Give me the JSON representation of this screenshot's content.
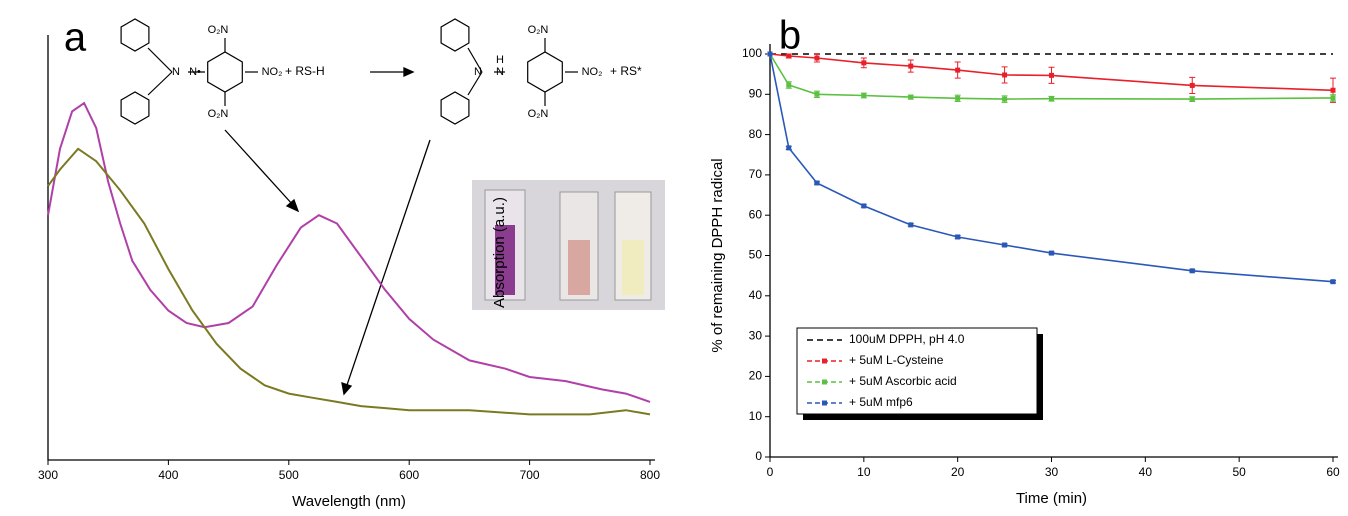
{
  "chart_data": [
    {
      "type": "line",
      "panel_label": "a",
      "xlabel": "Wavelength (nm)",
      "ylabel": "Absorption (a.u.)",
      "xlim": [
        300,
        800
      ],
      "xticks": [
        300,
        400,
        500,
        600,
        700,
        800
      ],
      "ylim": [
        0,
        1
      ],
      "reactant_labels": [
        "N",
        "N•",
        "O₂N",
        "NO₂",
        "O₂N"
      ],
      "reagent": "+ RS-H",
      "product_labels": [
        "N",
        "N",
        "H",
        "O₂N",
        "NO₂",
        "O₂N"
      ],
      "byproduct": "+ RS*",
      "series": [
        {
          "color": "#b040a8",
          "x": [
            300,
            310,
            320,
            330,
            340,
            350,
            360,
            370,
            385,
            400,
            415,
            430,
            450,
            470,
            490,
            510,
            525,
            540,
            560,
            580,
            600,
            620,
            650,
            680,
            700,
            730,
            760,
            780,
            800
          ],
          "values": [
            0.59,
            0.75,
            0.84,
            0.86,
            0.8,
            0.67,
            0.57,
            0.48,
            0.41,
            0.36,
            0.33,
            0.32,
            0.33,
            0.37,
            0.47,
            0.56,
            0.59,
            0.57,
            0.49,
            0.41,
            0.34,
            0.29,
            0.24,
            0.22,
            0.2,
            0.19,
            0.17,
            0.16,
            0.14
          ]
        },
        {
          "color": "#7a7a22",
          "x": [
            300,
            310,
            325,
            340,
            360,
            380,
            400,
            420,
            440,
            460,
            480,
            500,
            520,
            540,
            560,
            600,
            650,
            700,
            750,
            780,
            800
          ],
          "values": [
            0.66,
            0.7,
            0.75,
            0.72,
            0.65,
            0.57,
            0.46,
            0.36,
            0.28,
            0.22,
            0.18,
            0.16,
            0.15,
            0.14,
            0.13,
            0.12,
            0.12,
            0.11,
            0.11,
            0.12,
            0.11
          ]
        }
      ]
    },
    {
      "type": "line",
      "panel_label": "b",
      "xlabel": "Time (min)",
      "ylabel": "% of remaining DPPH radical",
      "xlim": [
        0,
        60
      ],
      "xticks": [
        0,
        10,
        20,
        30,
        40,
        50,
        60
      ],
      "ylim": [
        0,
        100
      ],
      "yticks": [
        0,
        10,
        20,
        30,
        40,
        50,
        60,
        70,
        80,
        90,
        100
      ],
      "legend": "lower left",
      "series": [
        {
          "name": "100uM DPPH, pH 4.0",
          "color": "#000000",
          "line_style": "dashed",
          "x": [
            0,
            60
          ],
          "values": [
            100,
            100
          ]
        },
        {
          "name": "+ 5uM L-Cysteine",
          "color": "#e8202a",
          "x": [
            0,
            2,
            5,
            10,
            15,
            20,
            25,
            30,
            45,
            60
          ],
          "values": [
            100,
            99.5,
            99,
            97.8,
            97,
            96,
            94.8,
            94.7,
            92.2,
            91
          ],
          "errors": [
            0,
            0.5,
            1,
            1.2,
            1.5,
            2,
            2,
            2,
            2,
            3
          ]
        },
        {
          "name": "+ 5uM Ascorbic acid",
          "color": "#5cc040",
          "x": [
            0,
            2,
            5,
            10,
            15,
            20,
            25,
            30,
            45,
            60
          ],
          "values": [
            100,
            92.3,
            90,
            89.7,
            89.3,
            89,
            88.8,
            88.9,
            88.8,
            89.1
          ],
          "errors": [
            0,
            0.8,
            0.8,
            0.6,
            0.5,
            0.8,
            0.8,
            0.6,
            0.6,
            0.8
          ]
        },
        {
          "name": "+ 5uM mfp6",
          "color": "#2b58b8",
          "x": [
            0,
            2,
            5,
            10,
            15,
            20,
            25,
            30,
            45,
            60
          ],
          "values": [
            100,
            76.7,
            68,
            62.3,
            57.6,
            54.6,
            52.6,
            50.6,
            46.2,
            43.5
          ],
          "errors": [
            0,
            0.4,
            0.3,
            0.3,
            0.3,
            0.4,
            0.3,
            0.3,
            0.3,
            0.3
          ]
        }
      ]
    }
  ]
}
